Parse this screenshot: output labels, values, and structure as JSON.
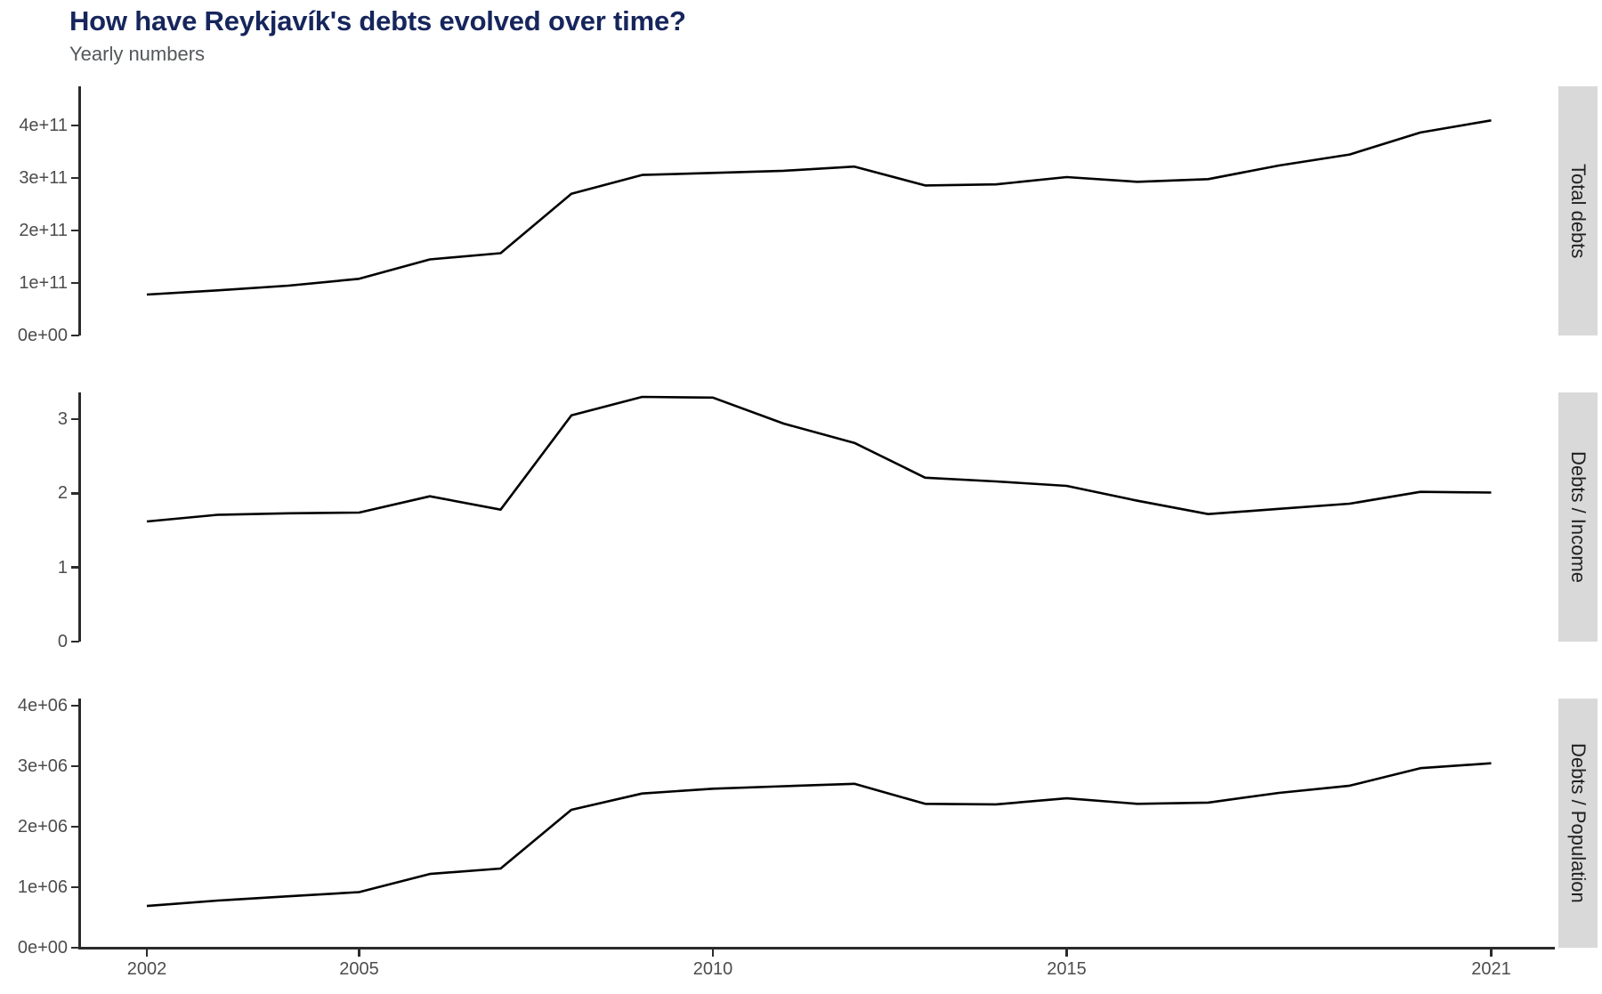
{
  "title": "How have Reykjavík's debts evolved over time?",
  "subtitle": "Yearly numbers",
  "colors": {
    "background": "#ffffff",
    "title": "#16265c",
    "subtitle": "#54585a",
    "tick_label": "#4d4d4d",
    "axis": "#2b2b2b",
    "line": "#000000",
    "strip_bg": "#d9d9d9",
    "strip_text": "#222222"
  },
  "chart_data": {
    "type": "line",
    "title": "How have Reykjavík's debts evolved over time?",
    "subtitle": "Yearly numbers",
    "xlabel": "",
    "ylabel": "",
    "grid": false,
    "legend_position": "none",
    "x": [
      2002,
      2003,
      2004,
      2005,
      2006,
      2007,
      2008,
      2009,
      2010,
      2011,
      2012,
      2013,
      2014,
      2015,
      2016,
      2017,
      2018,
      2019,
      2020,
      2021
    ],
    "x_ticks": [
      2002,
      2005,
      2010,
      2015,
      2021
    ],
    "x_tick_labels": [
      "2002",
      "2005",
      "2010",
      "2015",
      "2021"
    ],
    "facets": [
      {
        "label": "Total debts",
        "ymax": 475000000000.0,
        "ylim": [
          0,
          475000000000.0
        ],
        "y_ticks": [
          0,
          100000000000.0,
          200000000000.0,
          300000000000.0,
          400000000000.0
        ],
        "y_tick_labels": [
          "0e+00",
          "1e+11",
          "2e+11",
          "3e+11",
          "4e+11"
        ],
        "values": [
          78000000000.0,
          86000000000.0,
          95000000000.0,
          108000000000.0,
          145000000000.0,
          157000000000.0,
          270000000000.0,
          306000000000.0,
          310000000000.0,
          314000000000.0,
          322000000000.0,
          286000000000.0,
          288000000000.0,
          302000000000.0,
          293000000000.0,
          298000000000.0,
          324000000000.0,
          345000000000.0,
          387000000000.0,
          410000000000.0
        ]
      },
      {
        "label": "Debts / Income",
        "ymax": 3.36,
        "ylim": [
          0,
          3.36
        ],
        "y_ticks": [
          0,
          1,
          2,
          3
        ],
        "y_tick_labels": [
          "0",
          "1",
          "2",
          "3"
        ],
        "values": [
          1.62,
          1.71,
          1.73,
          1.74,
          1.96,
          1.78,
          3.05,
          3.3,
          3.29,
          2.94,
          2.68,
          2.21,
          2.16,
          2.1,
          1.9,
          1.72,
          1.79,
          1.86,
          2.02,
          2.01
        ]
      },
      {
        "label": "Debts / Population",
        "ymax": 4120000.0,
        "ylim": [
          0,
          4120000.0
        ],
        "y_ticks": [
          0,
          1000000.0,
          2000000.0,
          3000000.0,
          4000000.0
        ],
        "y_tick_labels": [
          "0e+00",
          "1e+06",
          "2e+06",
          "3e+06",
          "4e+06"
        ],
        "values": [
          690000.0,
          780000.0,
          850000.0,
          920000.0,
          1220000.0,
          1310000.0,
          2280000.0,
          2550000.0,
          2630000.0,
          2670000.0,
          2710000.0,
          2380000.0,
          2370000.0,
          2470000.0,
          2380000.0,
          2400000.0,
          2560000.0,
          2680000.0,
          2970000.0,
          3050000.0
        ]
      }
    ]
  }
}
